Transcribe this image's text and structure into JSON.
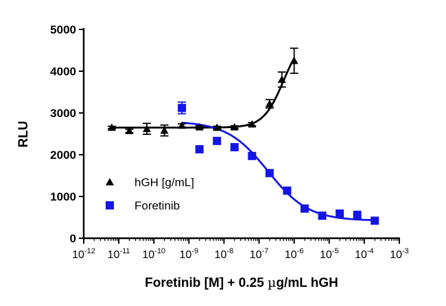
{
  "chart_data": {
    "type": "scatter",
    "title": "",
    "xlabel": "Foretinib [M] + 0.25 µg/mL hGH",
    "xlabel_parts": {
      "before": "Foretinib [M] + 0.25 ",
      "mu": "µ",
      "after": "g/mL hGH"
    },
    "ylabel": "RLU",
    "xscale": "log10",
    "xlim_log": [
      -12,
      -3
    ],
    "ylim": [
      0,
      5000
    ],
    "y_ticks": [
      0,
      1000,
      2000,
      3000,
      4000,
      5000
    ],
    "x_tick_exponents": [
      -12,
      -11,
      -10,
      -9,
      -8,
      -7,
      -6,
      -5,
      -4,
      -3
    ],
    "x_tick_base": "10",
    "legend_position": "lower-left",
    "grid": false,
    "series": [
      {
        "name": "hGH [g/mL]",
        "marker": "triangle",
        "color": "#000000",
        "points": [
          {
            "x": -11.2,
            "y": 2650,
            "err": 30
          },
          {
            "x": -10.7,
            "y": 2570,
            "err": 40
          },
          {
            "x": -10.2,
            "y": 2620,
            "err": 130
          },
          {
            "x": -9.7,
            "y": 2580,
            "err": 130
          },
          {
            "x": -9.2,
            "y": 2700,
            "err": 40
          },
          {
            "x": -8.7,
            "y": 2660,
            "err": 30
          },
          {
            "x": -8.2,
            "y": 2650,
            "err": 30
          },
          {
            "x": -7.7,
            "y": 2660,
            "err": 30
          },
          {
            "x": -7.2,
            "y": 2730,
            "err": 40
          },
          {
            "x": -6.7,
            "y": 3220,
            "err": 100
          },
          {
            "x": -6.35,
            "y": 3800,
            "err": 180
          },
          {
            "x": -6.0,
            "y": 4250,
            "err": 300
          }
        ],
        "fit": {
          "bottom": 2650,
          "top": 4900,
          "log_ec50": -6.3,
          "hill": 1.5,
          "x_range": [
            -11.2,
            -6.0
          ]
        }
      },
      {
        "name": "Foretinib",
        "marker": "square",
        "color": "#1515e6",
        "points": [
          {
            "x": -9.2,
            "y": 3120,
            "err": 140
          },
          {
            "x": -8.7,
            "y": 2130,
            "err": 0
          },
          {
            "x": -8.2,
            "y": 2330,
            "err": 0
          },
          {
            "x": -7.7,
            "y": 2180,
            "err": 0
          },
          {
            "x": -7.2,
            "y": 1970,
            "err": 0
          },
          {
            "x": -6.7,
            "y": 1560,
            "err": 0
          },
          {
            "x": -6.2,
            "y": 1140,
            "err": 0
          },
          {
            "x": -5.7,
            "y": 710,
            "err": 0
          },
          {
            "x": -5.2,
            "y": 540,
            "err": 0
          },
          {
            "x": -4.7,
            "y": 590,
            "err": 0
          },
          {
            "x": -4.2,
            "y": 560,
            "err": 0
          },
          {
            "x": -3.7,
            "y": 420,
            "err": 0
          }
        ],
        "fit": {
          "bottom": 420,
          "top": 2800,
          "log_ec50": -6.75,
          "hill": -0.75,
          "x_range": [
            -9.2,
            -3.7
          ]
        }
      }
    ]
  }
}
